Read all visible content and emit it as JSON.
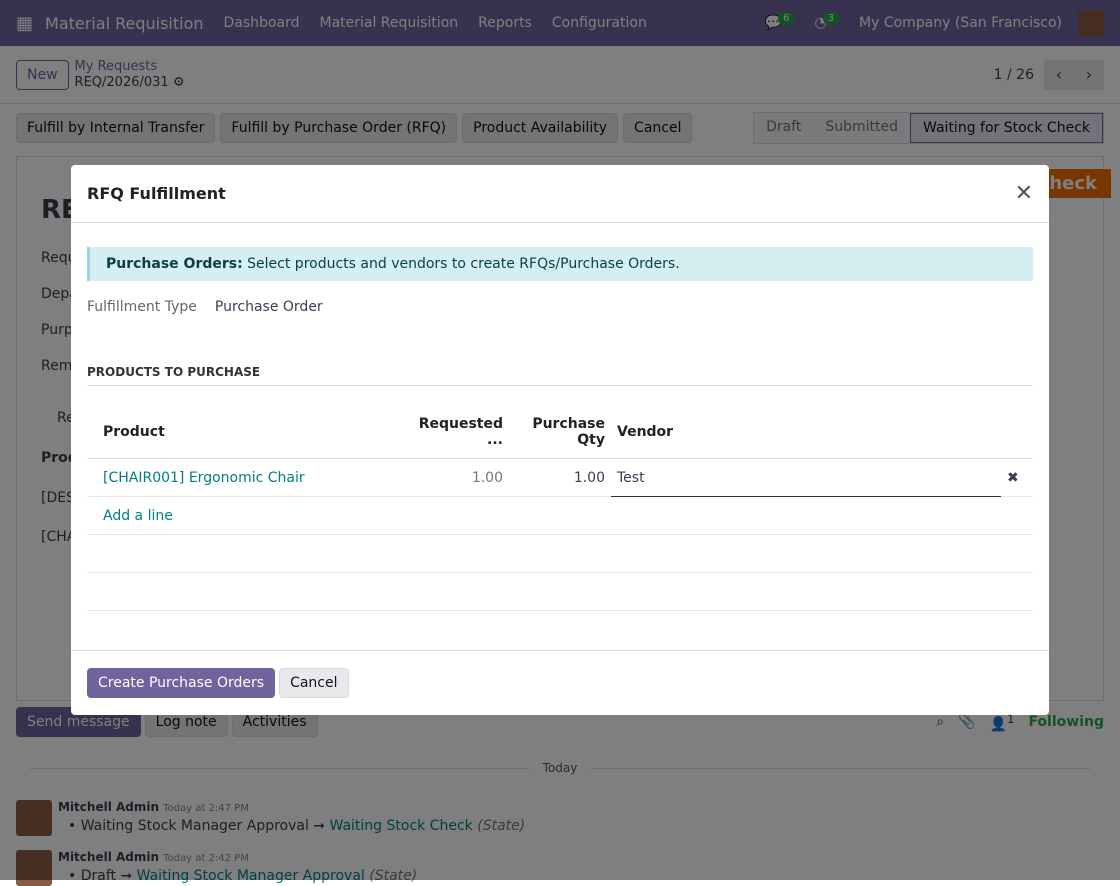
{
  "navbar": {
    "app": "Material Requisition",
    "menus": [
      "Dashboard",
      "Material Requisition",
      "Reports",
      "Configuration"
    ],
    "messages_count": "6",
    "activities_count": "3",
    "company": "My Company (San Francisco)"
  },
  "control": {
    "new_label": "New",
    "breadcrumb_parent": "My Requests",
    "record": "REQ/2026/031",
    "pager": "1 / 26"
  },
  "statusbar": {
    "buttons": [
      "Fulfill by Internal Transfer",
      "Fulfill by Purchase Order (RFQ)",
      "Product Availability",
      "Cancel"
    ],
    "stages": [
      "Draft",
      "Submitted",
      "Waiting for Stock Check"
    ],
    "current": "Waiting for Stock Check"
  },
  "sheet": {
    "ribbon": "Check",
    "fragments": [
      "RE",
      "Requ",
      "Depa",
      "Purp",
      "Rem",
      "Re",
      "Prod",
      "[DES",
      "[CHA"
    ]
  },
  "chatter": {
    "send": "Send message",
    "log": "Log note",
    "activities": "Activities",
    "followers": "1",
    "following": "Following",
    "today": "Today",
    "messages": [
      {
        "author": "Mitchell Admin",
        "time": "Today at 2:47 PM",
        "from": "Waiting Stock Manager Approval",
        "to": "Waiting Stock Check",
        "field": "(State)"
      },
      {
        "author": "Mitchell Admin",
        "time": "Today at 2:42 PM",
        "from": "Draft",
        "to": "Waiting Stock Manager Approval",
        "field": "(State)"
      }
    ]
  },
  "modal": {
    "title": "RFQ Fulfillment",
    "alert_bold": "Purchase Orders:",
    "alert_text": " Select products and vendors to create RFQs/Purchase Orders.",
    "fulfillment_label": "Fulfillment Type",
    "fulfillment_value": "Purchase Order",
    "section": "PRODUCTS TO PURCHASE",
    "columns": [
      "Product",
      "Requested ...",
      "Purchase Qty",
      "Vendor"
    ],
    "rows": [
      {
        "product": "[CHAIR001] Ergonomic Chair",
        "requested": "1.00",
        "qty": "1.00",
        "vendor": "Test"
      }
    ],
    "add_line": "Add a line",
    "create": "Create Purchase Orders",
    "cancel": "Cancel"
  }
}
